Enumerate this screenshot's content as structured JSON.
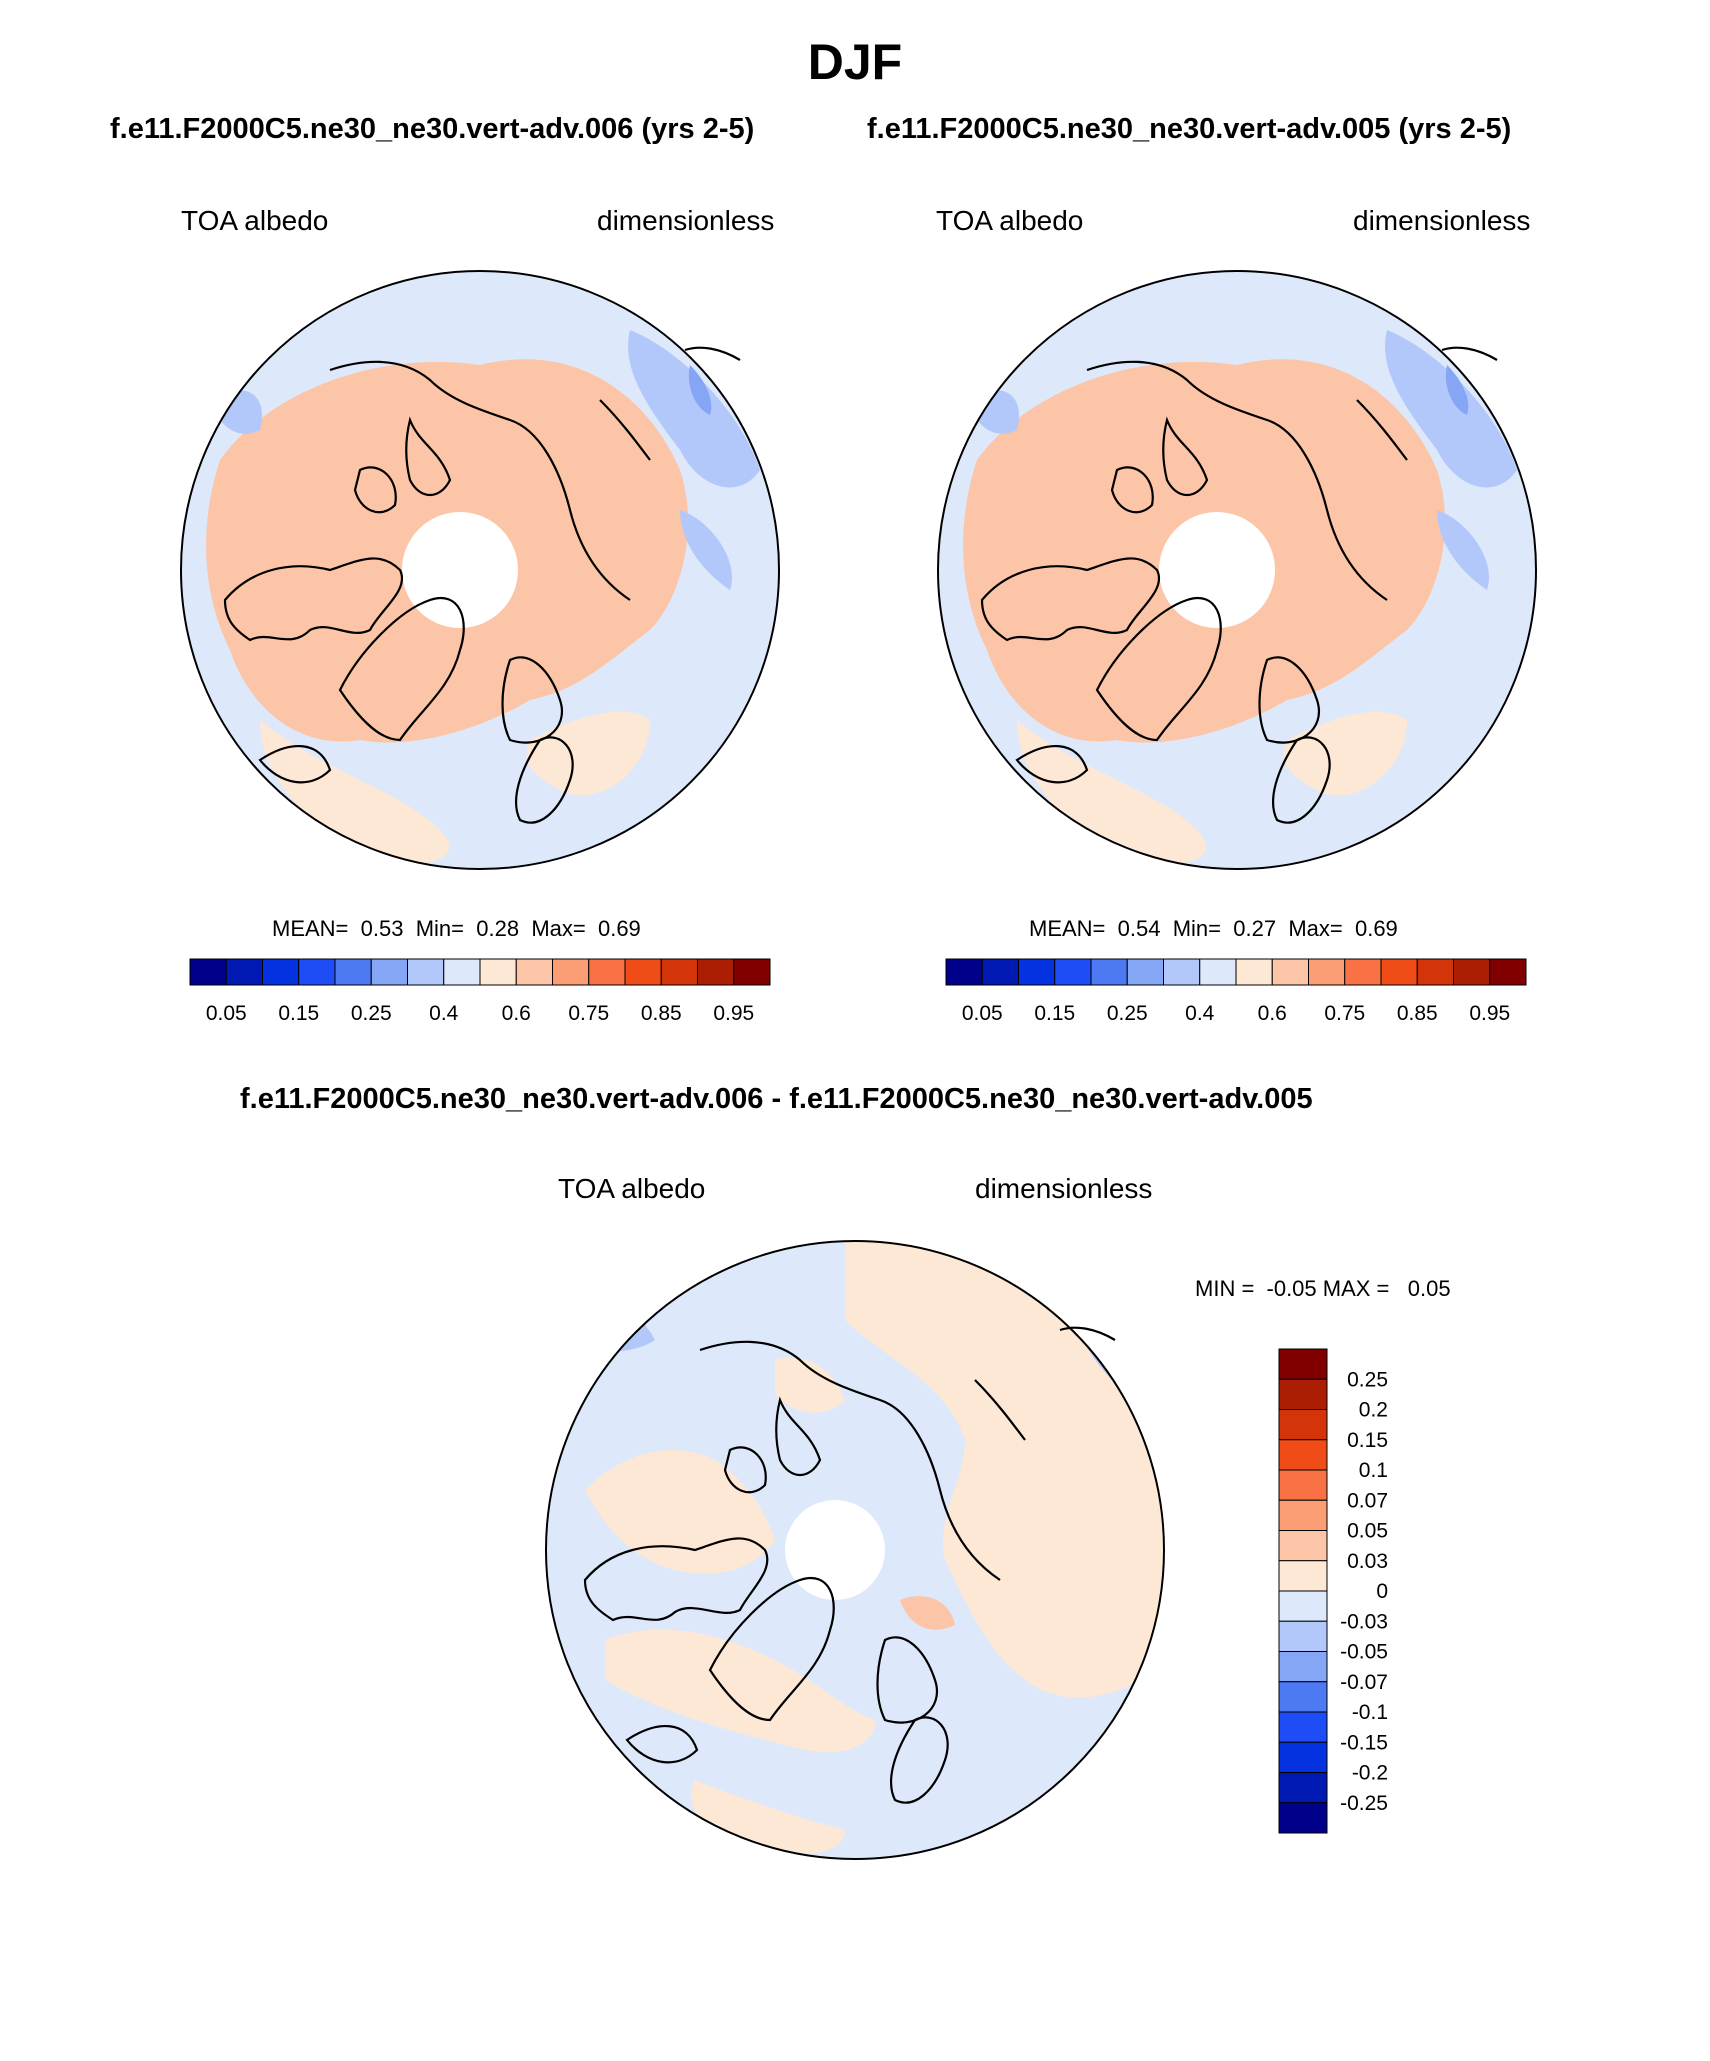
{
  "season_title": "DJF",
  "panels": [
    {
      "case_title": "f.e11.F2000C5.ne30_ne30.vert-adv.006 (yrs 2-5)",
      "variable": "TOA albedo",
      "units": "dimensionless",
      "stats": {
        "mean_label": "MEAN=",
        "mean": "0.53",
        "min_label": "Min=",
        "min": "0.28",
        "max_label": "Max=",
        "max": "0.69"
      }
    },
    {
      "case_title": "f.e11.F2000C5.ne30_ne30.vert-adv.005 (yrs 2-5)",
      "variable": "TOA albedo",
      "units": "dimensionless",
      "stats": {
        "mean_label": "MEAN=",
        "mean": "0.54",
        "min_label": "Min=",
        "min": "0.27",
        "max_label": "Max=",
        "max": "0.69"
      }
    }
  ],
  "diff_panel": {
    "case_title": "f.e11.F2000C5.ne30_ne30.vert-adv.006 - f.e11.F2000C5.ne30_ne30.vert-adv.005",
    "variable": "TOA albedo",
    "units": "dimensionless",
    "minmax_text": "MIN =  -0.05 MAX =   0.05"
  },
  "colorbar_main": {
    "tick_labels": [
      "0.05",
      "0.15",
      "0.25",
      "0.4",
      "0.6",
      "0.75",
      "0.85",
      "0.95"
    ],
    "colors": [
      "#00008a",
      "#0019b2",
      "#0532e0",
      "#1e4cf5",
      "#4d79f2",
      "#85a6f5",
      "#b3c8fa",
      "#dde9fa",
      "#fde7d5",
      "#fcc5a8",
      "#fb9d75",
      "#f97245",
      "#f04c17",
      "#d4340a",
      "#ac1e04",
      "#800000"
    ]
  },
  "colorbar_diff": {
    "tick_labels": [
      "0.25",
      "0.2",
      "0.15",
      "0.1",
      "0.07",
      "0.05",
      "0.03",
      "0",
      "-0.03",
      "-0.05",
      "-0.07",
      "-0.1",
      "-0.15",
      "-0.2",
      "-0.25"
    ],
    "colors": [
      "#800000",
      "#ac1e04",
      "#d4340a",
      "#f04c17",
      "#f97245",
      "#fb9d75",
      "#fcc5a8",
      "#fde7d5",
      "#dde9fa",
      "#b3c8fa",
      "#85a6f5",
      "#4d79f2",
      "#1e4cf5",
      "#0532e0",
      "#0019b2",
      "#00008a"
    ]
  },
  "map_colors": {
    "warm": "#fcc5a8",
    "light_warm": "#fde7d5",
    "light_cool": "#dde9fa",
    "cool": "#b3c8fa",
    "cooler": "#85a6f5",
    "outline": "#000000"
  }
}
